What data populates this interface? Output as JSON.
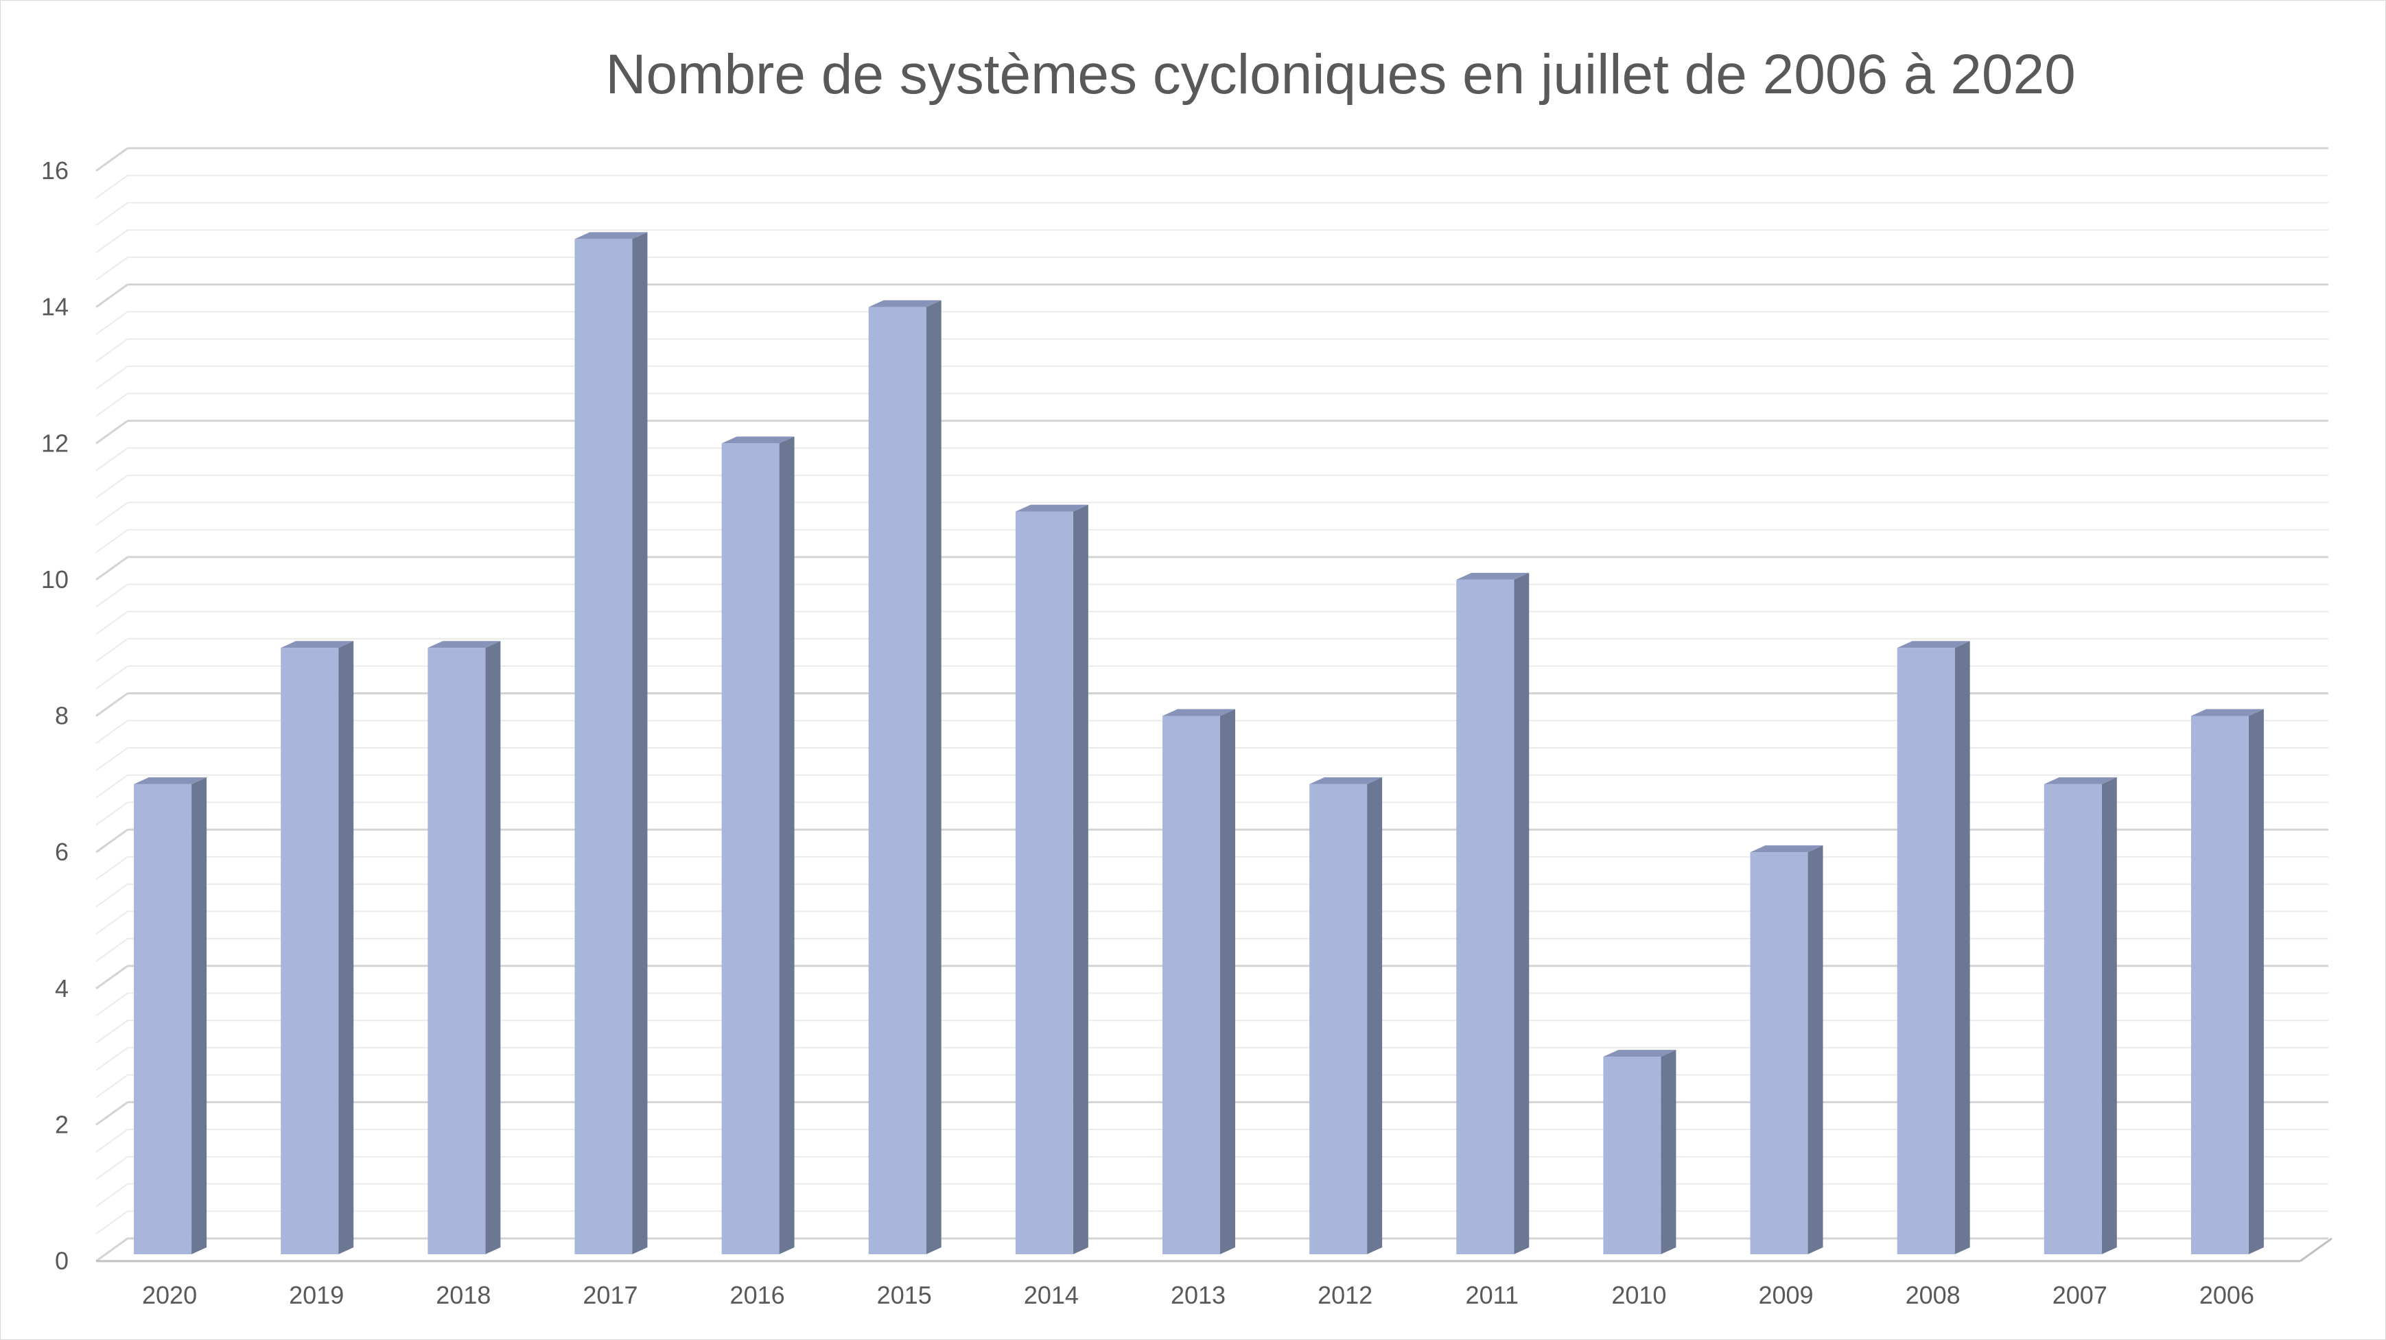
{
  "chart_data": {
    "type": "bar",
    "title": "Nombre de systèmes cycloniques en juillet de 2006 à 2020",
    "xlabel": "",
    "ylabel": "",
    "categories": [
      "2020",
      "2019",
      "2018",
      "2017",
      "2016",
      "2015",
      "2014",
      "2013",
      "2012",
      "2011",
      "2010",
      "2009",
      "2008",
      "2007",
      "2006"
    ],
    "values": [
      7,
      9,
      9,
      15,
      12,
      14,
      11,
      8,
      7,
      10,
      3,
      6,
      9,
      7,
      8
    ],
    "ylim": [
      0,
      16
    ],
    "y_ticks": [
      "0",
      "2",
      "4",
      "6",
      "8",
      "10",
      "12",
      "14",
      "16"
    ],
    "grid": true,
    "minor_grid": true,
    "legend": "none",
    "style": "3d-column",
    "colors": {
      "bar_front": "#a9b6dc",
      "bar_side": "#6c7893",
      "bar_top": "#8793b8",
      "major_grid": "#d4d4d4",
      "minor_grid": "#ebebeb",
      "text": "#595959"
    }
  }
}
